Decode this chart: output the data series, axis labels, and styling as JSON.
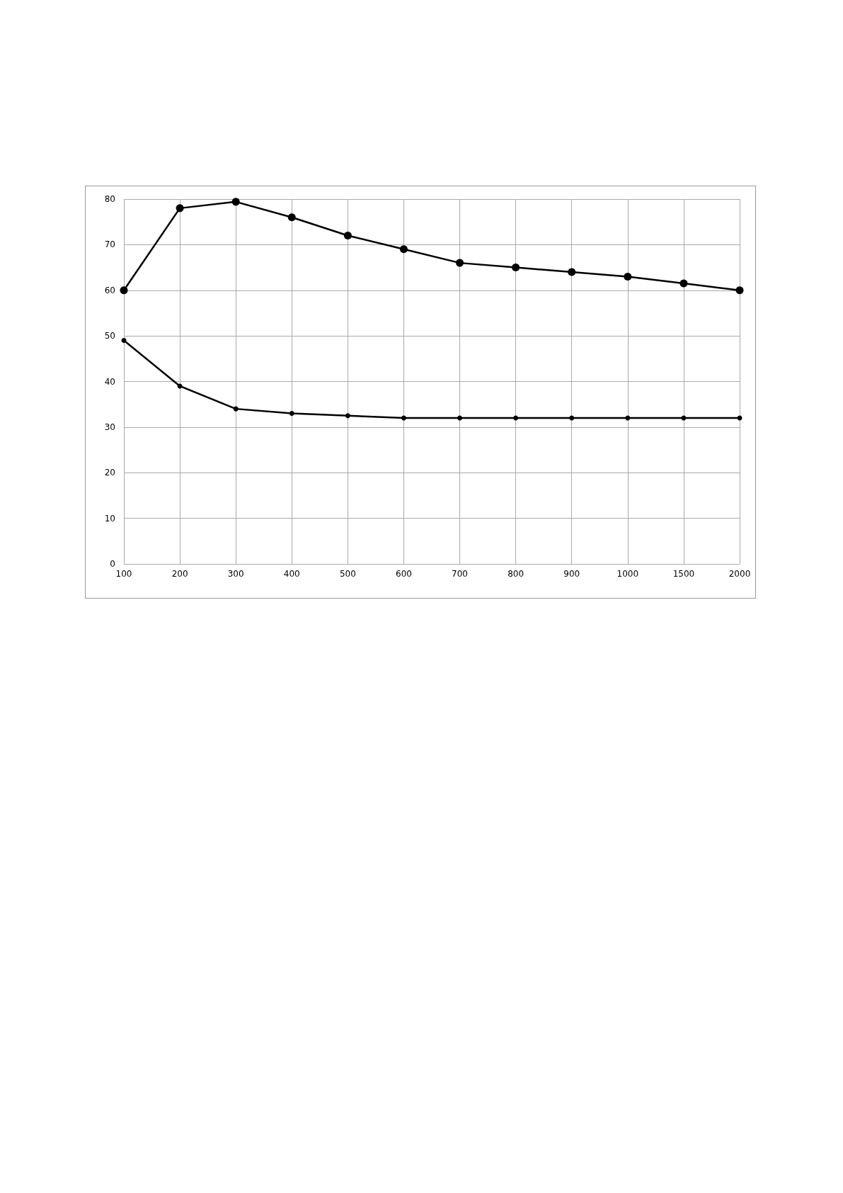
{
  "chart_data": {
    "type": "line",
    "categories": [
      "100",
      "200",
      "300",
      "400",
      "500",
      "600",
      "700",
      "800",
      "900",
      "1000",
      "1500",
      "2000"
    ],
    "series": [
      {
        "color": "#000000",
        "marker": "circle",
        "values": [
          60,
          78,
          79.4,
          76,
          72,
          69,
          66,
          65,
          64,
          63,
          61.5,
          60
        ]
      },
      {
        "color": "#000000",
        "marker": "circle",
        "values": [
          49,
          39,
          34,
          33,
          32.5,
          32,
          32,
          32,
          32,
          32,
          32,
          32
        ]
      }
    ],
    "ylim": [
      0,
      80
    ],
    "yticks": [
      0,
      10,
      20,
      30,
      40,
      50,
      60,
      70,
      80
    ],
    "grid": true,
    "line_style": "solid"
  }
}
